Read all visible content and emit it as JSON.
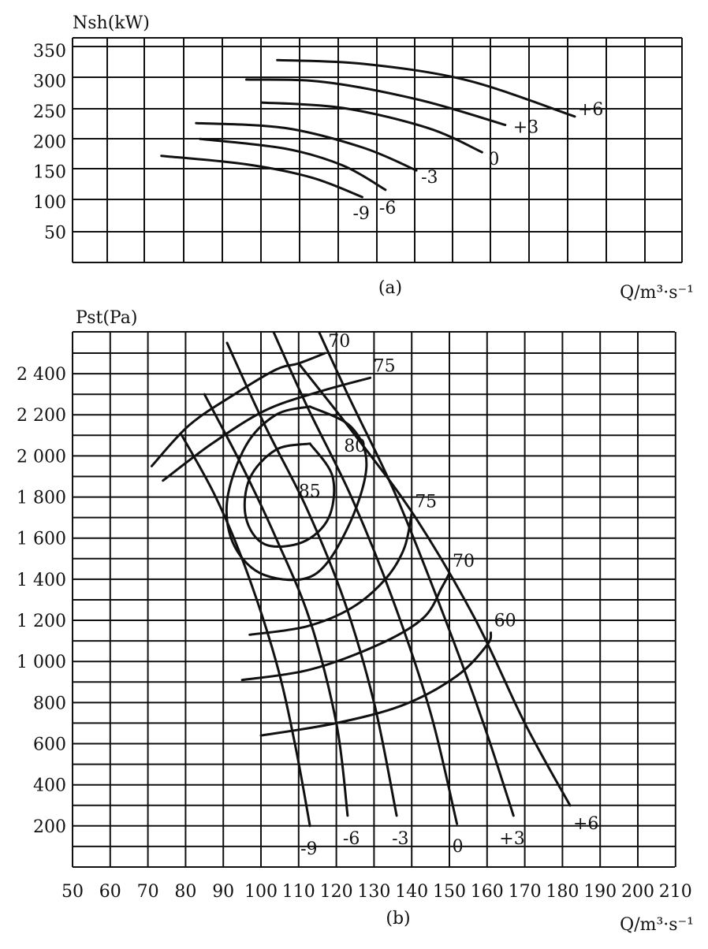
{
  "chart_data": [
    {
      "panel": "(a)",
      "type": "line",
      "ylabel": "Nsh(kW)",
      "xlabel": "Q/m³·s⁻¹",
      "ylim": [
        0,
        350
      ],
      "yticks": [
        50,
        100,
        150,
        200,
        250,
        300,
        350
      ],
      "grid": true,
      "series": [
        {
          "name": "-9",
          "points": [
            [
              73,
              176
            ],
            [
              95,
              162
            ],
            [
              112,
              140
            ],
            [
              125,
              108
            ]
          ]
        },
        {
          "name": "-6",
          "points": [
            [
              83,
              204
            ],
            [
              105,
              188
            ],
            [
              120,
              160
            ],
            [
              131,
              120
            ]
          ]
        },
        {
          "name": "-3",
          "points": [
            [
              82,
              230
            ],
            [
              105,
              222
            ],
            [
              125,
              190
            ],
            [
              139,
              152
            ]
          ]
        },
        {
          "name": "0",
          "points": [
            [
              99,
              264
            ],
            [
              120,
              255
            ],
            [
              142,
              222
            ],
            [
              156,
              182
            ]
          ]
        },
        {
          "name": "+3",
          "points": [
            [
              95,
              302
            ],
            [
              115,
              298
            ],
            [
              140,
              268
            ],
            [
              162,
              227
            ]
          ]
        },
        {
          "name": "+6",
          "points": [
            [
              103,
              334
            ],
            [
              125,
              328
            ],
            [
              152,
              301
            ],
            [
              180,
              241
            ]
          ]
        }
      ]
    },
    {
      "panel": "(b)",
      "type": "line",
      "ylabel": "Pst(Pa)",
      "xlabel": "Q/m³·s⁻¹",
      "xticks": [
        50,
        60,
        70,
        80,
        90,
        100,
        110,
        120,
        130,
        140,
        150,
        160,
        170,
        180,
        190,
        200,
        210
      ],
      "yticks": [
        200,
        400,
        600,
        800,
        1000,
        1200,
        1400,
        1600,
        1800,
        2000,
        2200,
        2400
      ],
      "ytick_labels": [
        "200",
        "400",
        "600",
        "800",
        "1 000",
        "1 200",
        "1 400",
        "1 600",
        "1 800",
        "2 000",
        "2 200",
        "2 400"
      ],
      "xlim": [
        50,
        210
      ],
      "ylim": [
        0,
        2580
      ],
      "grid": true,
      "series": [
        {
          "name": "-9",
          "points": [
            [
              79,
              2100
            ],
            [
              88,
              1800
            ],
            [
              96,
              1450
            ],
            [
              104,
              1000
            ],
            [
              109,
              600
            ],
            [
              113,
              200
            ]
          ]
        },
        {
          "name": "-6",
          "points": [
            [
              85,
              2300
            ],
            [
              95,
              1950
            ],
            [
              104,
              1600
            ],
            [
              113,
              1200
            ],
            [
              120,
              700
            ],
            [
              123,
              250
            ]
          ]
        },
        {
          "name": "-3",
          "points": [
            [
              91,
              2550
            ],
            [
              101,
              2150
            ],
            [
              112,
              1750
            ],
            [
              122,
              1300
            ],
            [
              130,
              800
            ],
            [
              136,
              250
            ]
          ]
        },
        {
          "name": "0",
          "points": [
            [
              101,
              2700
            ],
            [
              112,
              2250
            ],
            [
              124,
              1800
            ],
            [
              135,
              1300
            ],
            [
              145,
              750
            ],
            [
              152,
              210
            ]
          ]
        },
        {
          "name": "+3",
          "points": [
            [
              110,
              2820
            ],
            [
              123,
              2300
            ],
            [
              136,
              1800
            ],
            [
              149,
              1200
            ],
            [
              159,
              700
            ],
            [
              167,
              250
            ]
          ]
        },
        {
          "name": "+6",
          "points": [
            [
              110,
              2450
            ],
            [
              125,
              2100
            ],
            [
              141,
              1700
            ],
            [
              157,
              1200
            ],
            [
              170,
              700
            ],
            [
              182,
              300
            ]
          ]
        }
      ],
      "efficiency_curves": [
        {
          "label": "70",
          "type": "arc",
          "points": [
            [
              71,
              1950
            ],
            [
              81,
              2150
            ],
            [
              93,
              2300
            ],
            [
              104,
              2420
            ],
            [
              110,
              2450
            ],
            [
              117,
              2500
            ]
          ]
        },
        {
          "label": "75",
          "type": "arc",
          "points": [
            [
              74,
              1880
            ],
            [
              87,
              2060
            ],
            [
              101,
              2220
            ],
            [
              115,
              2310
            ],
            [
              129,
              2380
            ]
          ]
        },
        {
          "label": "80",
          "type": "loop",
          "points": [
            [
              113,
              2240
            ],
            [
              124,
              2140
            ],
            [
              128,
              1950
            ],
            [
              123,
              1650
            ],
            [
              114,
              1420
            ],
            [
              101,
              1420
            ],
            [
              93,
              1560
            ],
            [
              91,
              1780
            ],
            [
              96,
              2050
            ],
            [
              104,
              2200
            ],
            [
              113,
              2240
            ]
          ]
        },
        {
          "label": "85",
          "type": "loop",
          "points": [
            [
              113,
              2060
            ],
            [
              119,
              1900
            ],
            [
              118,
              1700
            ],
            [
              111,
              1580
            ],
            [
              101,
              1570
            ],
            [
              96,
              1700
            ],
            [
              97,
              1890
            ],
            [
              104,
              2030
            ],
            [
              113,
              2060
            ]
          ]
        },
        {
          "label": "75",
          "type": "arc",
          "points": [
            [
              97,
              1130
            ],
            [
              112,
              1170
            ],
            [
              124,
              1260
            ],
            [
              133,
              1400
            ],
            [
              138,
              1550
            ],
            [
              140,
              1720
            ]
          ]
        },
        {
          "label": "70",
          "type": "arc",
          "points": [
            [
              95,
              910
            ],
            [
              113,
              960
            ],
            [
              131,
              1080
            ],
            [
              143,
              1210
            ],
            [
              148,
              1360
            ],
            [
              150,
              1430
            ]
          ]
        },
        {
          "label": "60",
          "type": "arc",
          "points": [
            [
              100,
              640
            ],
            [
              120,
              700
            ],
            [
              138,
              790
            ],
            [
              152,
              930
            ],
            [
              160,
              1080
            ],
            [
              161,
              1140
            ]
          ]
        }
      ]
    }
  ]
}
